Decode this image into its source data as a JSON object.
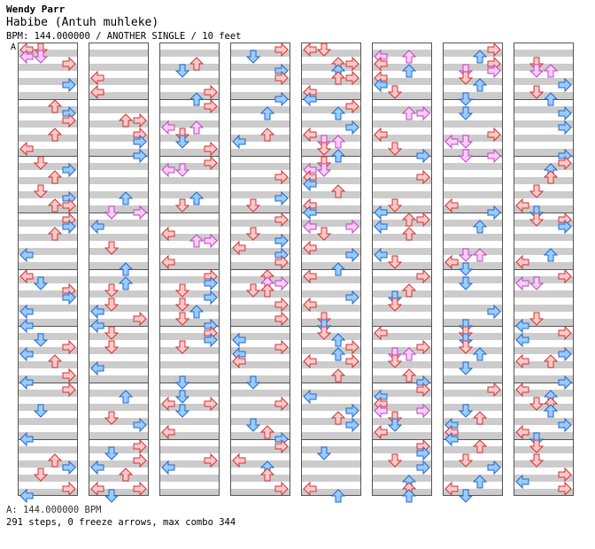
{
  "header": {
    "author": "Wendy Parr",
    "song": "Habibe (Antuh muhleke)",
    "meta": "BPM: 144.000000 / ANOTHER SINGLE / 10 feet"
  },
  "chart": {
    "section_label": "A",
    "columns": 8,
    "measures_per_column": 8,
    "colors": {
      "stripe": "#cccccc",
      "border": "#555555",
      "quarter_fill": "#ffc8c8",
      "quarter_stroke": "#cc3333",
      "eighth_fill": "#99ccff",
      "eighth_stroke": "#2266cc",
      "jump_fill": "#ffccff",
      "jump_stroke": "#bb44bb"
    }
  },
  "footer": {
    "bpm_line": "A: 144.000000 BPM",
    "summary": "291 steps, 0 freeze arrows, max combo 344"
  }
}
